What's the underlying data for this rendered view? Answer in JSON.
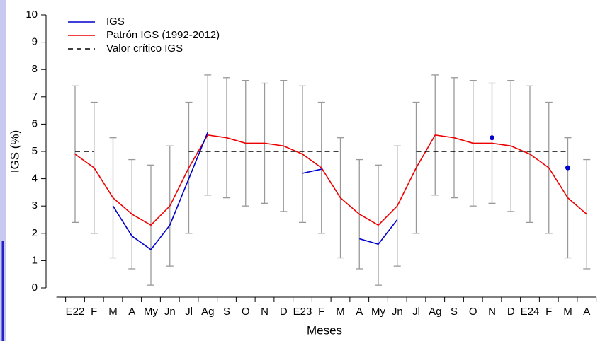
{
  "chart_data": {
    "type": "line",
    "xlabel": "Meses",
    "ylabel": "IGS (%)",
    "categories": [
      "E22",
      "F",
      "M",
      "A",
      "My",
      "Jn",
      "Jl",
      "Ag",
      "S",
      "O",
      "N",
      "D",
      "E23",
      "F",
      "M",
      "A",
      "My",
      "Jn",
      "Jl",
      "Ag",
      "S",
      "O",
      "N",
      "D",
      "E24",
      "F",
      "M",
      "A"
    ],
    "ylim": [
      0,
      10
    ],
    "yticks": [
      0,
      1,
      2,
      3,
      4,
      5,
      6,
      7,
      8,
      9,
      10
    ],
    "series": [
      {
        "name": "IGS",
        "color": "#0000cc",
        "style": "solid",
        "values": [
          null,
          null,
          3.0,
          1.9,
          1.4,
          2.3,
          4.0,
          5.7,
          null,
          null,
          null,
          null,
          4.2,
          4.35,
          null,
          1.8,
          1.6,
          2.5,
          null,
          null,
          null,
          null,
          5.5,
          null,
          null,
          null,
          4.4,
          null
        ]
      },
      {
        "name": "Patrón IGS (1992-2012)",
        "color": "#ee0000",
        "style": "solid",
        "values": [
          4.9,
          4.4,
          3.3,
          2.7,
          2.3,
          3.0,
          4.4,
          5.6,
          5.5,
          5.3,
          5.3,
          5.2,
          4.9,
          4.4,
          3.3,
          2.7,
          2.3,
          3.0,
          4.4,
          5.6,
          5.5,
          5.3,
          5.3,
          5.2,
          4.9,
          4.4,
          3.3,
          2.7
        ]
      },
      {
        "name": "Valor crítico IGS",
        "color": "#000000",
        "style": "dashed",
        "values": [
          5,
          5,
          null,
          null,
          null,
          null,
          5,
          5,
          5,
          5,
          5,
          5,
          5,
          5,
          5,
          null,
          null,
          null,
          5,
          5,
          5,
          5,
          5,
          5,
          5,
          5,
          5,
          null
        ]
      }
    ],
    "error_bars": {
      "color": "#999999",
      "upper": [
        7.4,
        6.8,
        5.5,
        4.7,
        4.5,
        5.2,
        6.8,
        7.8,
        7.7,
        7.6,
        7.5,
        7.6,
        7.4,
        6.8,
        5.5,
        4.7,
        4.5,
        5.2,
        6.8,
        7.8,
        7.7,
        7.6,
        7.5,
        7.6,
        7.4,
        6.8,
        5.5,
        4.7
      ],
      "lower": [
        2.4,
        2.0,
        1.1,
        0.7,
        0.1,
        0.8,
        2.0,
        3.4,
        3.3,
        3.0,
        3.1,
        2.8,
        2.4,
        2.0,
        1.1,
        0.7,
        0.1,
        0.8,
        2.0,
        3.4,
        3.3,
        3.0,
        3.1,
        2.8,
        2.4,
        2.0,
        1.1,
        0.7
      ]
    },
    "legend": "top-left"
  }
}
